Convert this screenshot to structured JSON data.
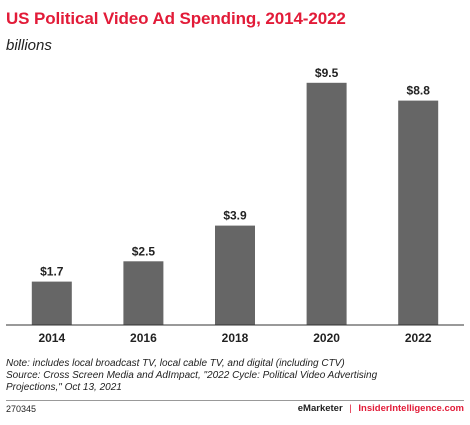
{
  "header": {
    "title": "US Political Video Ad Spending, 2014-2022",
    "subtitle": "billions"
  },
  "chart_data": {
    "type": "bar",
    "categories": [
      "2014",
      "2016",
      "2018",
      "2020",
      "2022"
    ],
    "values": [
      1.7,
      2.5,
      3.9,
      9.5,
      8.8
    ],
    "data_labels": [
      "$1.7",
      "$2.5",
      "$3.9",
      "$9.5",
      "$8.8"
    ],
    "title": "US Political Video Ad Spending, 2014-2022",
    "subtitle": "billions",
    "xlabel": "",
    "ylabel": "",
    "ylim": [
      0,
      10
    ],
    "grid": false,
    "legend": "none",
    "colors": {
      "bar": "#666666",
      "axis": "#333333"
    }
  },
  "footnotes": {
    "note": "Note: includes local broadcast TV, local cable TV, and digital (including CTV)",
    "source_line1": "Source: Cross Screen Media and AdImpact, \"2022 Cycle: Political Video Advertising",
    "source_line2": "Projections,\" Oct 13, 2021"
  },
  "footer": {
    "chart_id": "270345",
    "brand_emarketer": "eMarketer",
    "separator": "|",
    "brand_insider": "InsiderIntelligence.com"
  },
  "colors": {
    "title": "#e21b38",
    "bar": "#666666",
    "text": "#222222"
  }
}
